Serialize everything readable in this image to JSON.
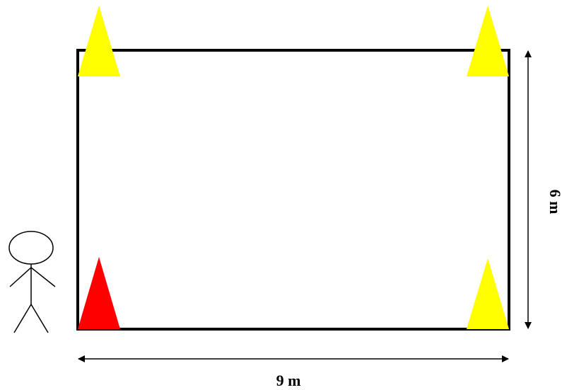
{
  "dimensions": {
    "width": "9 m",
    "height": "6 m"
  }
}
